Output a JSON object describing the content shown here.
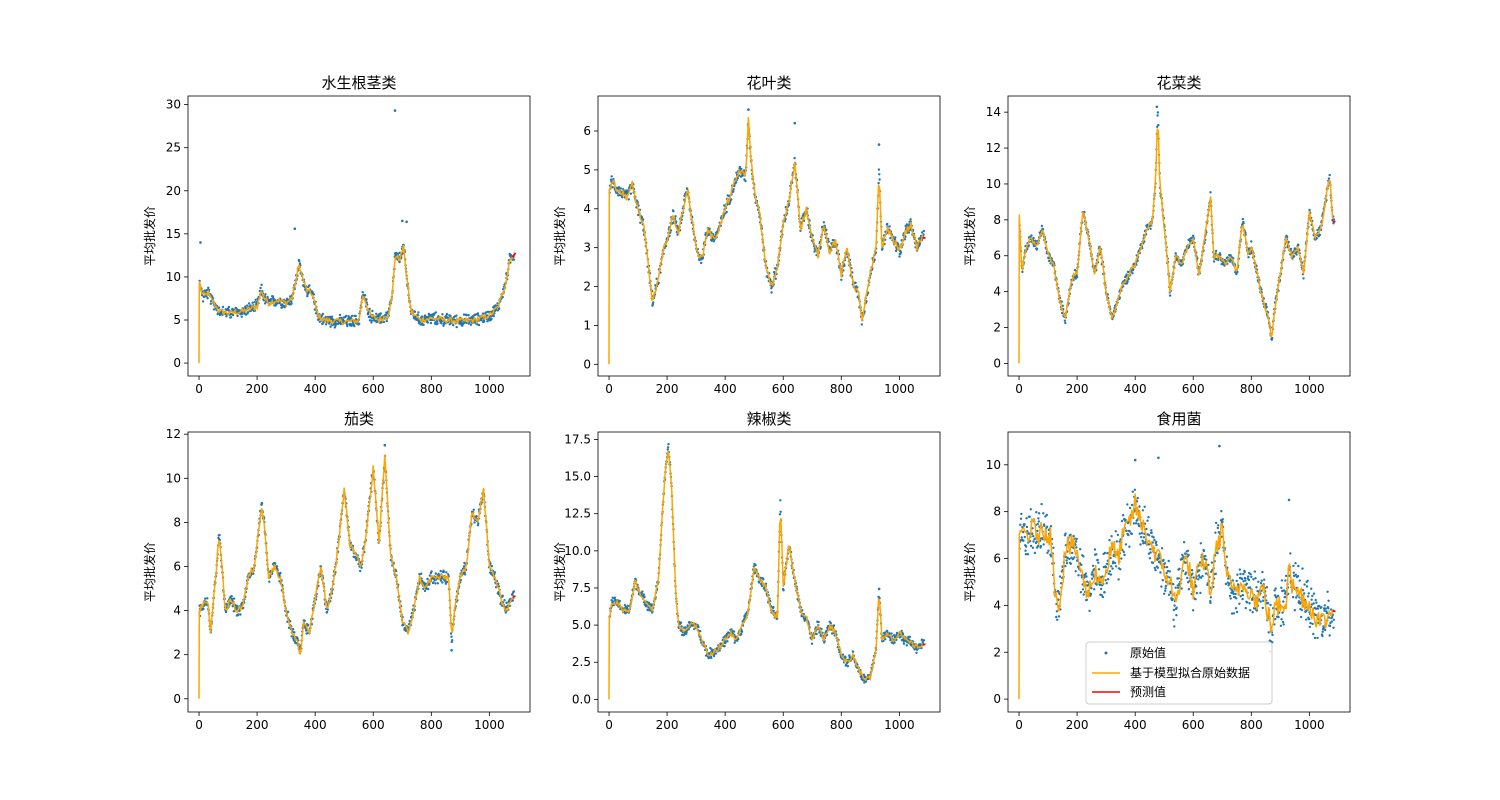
{
  "figure": {
    "ylabel": "平均批发价",
    "legend": {
      "placement": "lower-center (in 食用菌 panel)",
      "entries": [
        "原始值",
        "基于模型拟合原始数据",
        "预测值"
      ]
    },
    "colors": {
      "scatter": "#1f77b4",
      "fit": "#ffa500",
      "forecast": "#ff0000"
    }
  },
  "chart_data": [
    {
      "type": "line",
      "title": "水生根茎类",
      "ylabel": "平均批发价",
      "xlim": [
        -38,
        1140
      ],
      "ylim": [
        -1.5,
        31
      ],
      "xticks": [
        0,
        200,
        400,
        600,
        800,
        1000
      ],
      "yticks": [
        0,
        5,
        10,
        15,
        20,
        25,
        30
      ],
      "series": [
        {
          "name": "原始值",
          "kind": "scatter",
          "noise": 0.6,
          "outliers": [
            [
              5,
              14
            ],
            [
              330,
              15.6
            ],
            [
              675,
              29.3
            ],
            [
              700,
              16.5
            ],
            [
              715,
              16.4
            ]
          ]
        },
        {
          "name": "基于模型拟合原始数据",
          "kind": "line",
          "x": [
            0,
            1,
            10,
            20,
            30,
            40,
            50,
            70,
            100,
            150,
            200,
            215,
            225,
            240,
            270,
            300,
            320,
            330,
            345,
            355,
            370,
            390,
            410,
            430,
            460,
            500,
            550,
            565,
            575,
            590,
            620,
            650,
            665,
            675,
            690,
            705,
            715,
            730,
            760,
            800,
            850,
            900,
            950,
            1000,
            1030,
            1050,
            1060,
            1070,
            1080
          ],
          "y": [
            0,
            9.5,
            8.0,
            7.8,
            8.2,
            7.5,
            7.0,
            6.0,
            5.8,
            6.0,
            6.6,
            8.5,
            7.5,
            7.0,
            7.3,
            7.0,
            7.5,
            9.0,
            11.5,
            10.0,
            8.5,
            8.0,
            5.5,
            5.0,
            4.9,
            4.8,
            4.9,
            8.0,
            7.0,
            5.5,
            5.0,
            5.5,
            7.5,
            12.5,
            12.0,
            13.5,
            10.0,
            6.0,
            5.0,
            5.2,
            5.0,
            4.9,
            5.0,
            5.5,
            6.5,
            8.5,
            10.0,
            12.0,
            12.5
          ]
        },
        {
          "name": "预测值",
          "kind": "line",
          "x": [
            1080,
            1090
          ],
          "y": [
            12.3,
            12.8
          ]
        }
      ]
    },
    {
      "type": "line",
      "title": "花叶类",
      "ylabel": "平均批发价",
      "xlim": [
        -38,
        1140
      ],
      "ylim": [
        -0.3,
        6.9
      ],
      "xticks": [
        0,
        200,
        400,
        600,
        800,
        1000
      ],
      "yticks": [
        0,
        1,
        2,
        3,
        4,
        5,
        6
      ],
      "series": [
        {
          "name": "原始值",
          "kind": "scatter",
          "noise": 0.15,
          "outliers": [
            [
              640,
              6.2
            ],
            [
              930,
              5.65
            ],
            [
              480,
              6.55
            ]
          ]
        },
        {
          "name": "基于模型拟合原始数据",
          "kind": "line",
          "x": [
            0,
            1,
            10,
            30,
            60,
            80,
            100,
            120,
            150,
            170,
            190,
            210,
            220,
            240,
            260,
            270,
            300,
            320,
            340,
            360,
            380,
            400,
            430,
            450,
            470,
            480,
            490,
            500,
            520,
            540,
            560,
            580,
            600,
            620,
            640,
            660,
            680,
            700,
            720,
            740,
            760,
            780,
            800,
            820,
            840,
            860,
            870,
            880,
            900,
            920,
            930,
            940,
            960,
            980,
            1000,
            1020,
            1040,
            1060,
            1080
          ],
          "y": [
            0,
            4.5,
            4.7,
            4.5,
            4.3,
            4.6,
            4.0,
            3.5,
            1.6,
            2.2,
            3.0,
            3.5,
            3.8,
            3.4,
            4.2,
            4.5,
            3.0,
            2.7,
            3.5,
            3.2,
            3.5,
            4.0,
            4.6,
            5.0,
            4.8,
            6.3,
            5.2,
            4.5,
            3.8,
            2.5,
            2.0,
            2.5,
            3.6,
            4.2,
            5.2,
            3.5,
            4.0,
            3.2,
            2.8,
            3.6,
            2.9,
            3.2,
            2.3,
            3.0,
            2.1,
            1.8,
            1.1,
            1.5,
            2.3,
            3.0,
            5.0,
            3.0,
            3.5,
            3.2,
            2.9,
            3.4,
            3.6,
            3.0,
            3.3
          ]
        },
        {
          "name": "预测值",
          "kind": "line",
          "x": [
            1080,
            1090
          ],
          "y": [
            3.25,
            3.25
          ]
        }
      ]
    },
    {
      "type": "line",
      "title": "花菜类",
      "ylabel": "平均批发价",
      "xlim": [
        -38,
        1140
      ],
      "ylim": [
        -0.7,
        14.9
      ],
      "xticks": [
        0,
        200,
        400,
        600,
        800,
        1000
      ],
      "yticks": [
        0,
        2,
        4,
        6,
        8,
        10,
        12,
        14
      ],
      "series": [
        {
          "name": "原始值",
          "kind": "scatter",
          "noise": 0.25,
          "outliers": [
            [
              475,
              14.3
            ]
          ]
        },
        {
          "name": "基于模型拟合原始数据",
          "kind": "line",
          "x": [
            0,
            1,
            10,
            20,
            40,
            60,
            80,
            100,
            120,
            140,
            160,
            180,
            190,
            200,
            220,
            240,
            260,
            280,
            300,
            320,
            340,
            360,
            380,
            400,
            420,
            440,
            460,
            470,
            478,
            485,
            495,
            510,
            520,
            540,
            560,
            580,
            600,
            620,
            640,
            660,
            670,
            690,
            710,
            730,
            750,
            770,
            790,
            800,
            820,
            840,
            860,
            870,
            880,
            900,
            920,
            940,
            960,
            980,
            1000,
            1020,
            1040,
            1060,
            1070,
            1080
          ],
          "y": [
            0,
            8.3,
            5.0,
            6.2,
            7.0,
            6.5,
            7.5,
            6.0,
            5.5,
            3.5,
            2.5,
            4.5,
            5.0,
            5.0,
            8.5,
            7.0,
            5.0,
            6.5,
            4.0,
            2.5,
            3.5,
            4.5,
            5.0,
            5.5,
            6.5,
            7.5,
            8.0,
            10.0,
            14.2,
            10.0,
            8.5,
            6.0,
            4.0,
            6.0,
            5.5,
            6.5,
            7.0,
            5.0,
            7.0,
            9.4,
            6.0,
            6.0,
            5.5,
            6.0,
            5.0,
            8.0,
            6.0,
            6.5,
            5.0,
            3.5,
            2.5,
            1.3,
            3.0,
            5.0,
            7.0,
            6.0,
            6.5,
            5.0,
            8.5,
            7.0,
            7.5,
            9.5,
            10.5,
            8.0
          ]
        },
        {
          "name": "预测值",
          "kind": "line",
          "x": [
            1080,
            1090
          ],
          "y": [
            7.9,
            7.9
          ]
        }
      ]
    },
    {
      "type": "line",
      "title": "茄类",
      "ylabel": "平均批发价",
      "xlim": [
        -38,
        1140
      ],
      "ylim": [
        -0.6,
        12.1
      ],
      "xticks": [
        0,
        200,
        400,
        600,
        800,
        1000
      ],
      "yticks": [
        0,
        2,
        4,
        6,
        8,
        10,
        12
      ],
      "series": [
        {
          "name": "原始值",
          "kind": "scatter",
          "noise": 0.25,
          "outliers": [
            [
              640,
              11.5
            ],
            [
              870,
              2.2
            ]
          ]
        },
        {
          "name": "基于模型拟合原始数据",
          "kind": "line",
          "x": [
            0,
            1,
            10,
            30,
            40,
            60,
            70,
            90,
            110,
            130,
            150,
            170,
            190,
            200,
            215,
            225,
            240,
            260,
            280,
            300,
            320,
            340,
            350,
            360,
            380,
            400,
            420,
            440,
            460,
            480,
            500,
            520,
            540,
            560,
            580,
            600,
            620,
            640,
            660,
            680,
            700,
            720,
            740,
            760,
            780,
            800,
            830,
            860,
            870,
            880,
            900,
            920,
            940,
            960,
            980,
            1000,
            1020,
            1040,
            1060,
            1080
          ],
          "y": [
            0,
            4.0,
            4.2,
            4.5,
            3.0,
            6.0,
            7.5,
            4.0,
            4.5,
            4.0,
            4.2,
            5.5,
            6.0,
            7.0,
            8.8,
            8.0,
            5.5,
            6.0,
            5.5,
            4.0,
            3.0,
            2.5,
            2.0,
            3.5,
            3.0,
            4.5,
            6.0,
            4.0,
            5.0,
            7.0,
            9.5,
            7.0,
            6.5,
            6.0,
            8.0,
            10.5,
            7.0,
            11.0,
            6.5,
            5.5,
            3.5,
            3.0,
            4.0,
            5.5,
            5.0,
            5.5,
            5.5,
            5.5,
            2.7,
            4.0,
            5.5,
            6.0,
            8.5,
            8.0,
            9.5,
            6.0,
            5.5,
            4.5,
            4.0,
            4.7
          ]
        },
        {
          "name": "预测值",
          "kind": "line",
          "x": [
            1080,
            1090
          ],
          "y": [
            4.65,
            4.65
          ]
        }
      ]
    },
    {
      "type": "line",
      "title": "辣椒类",
      "ylabel": "平均批发价",
      "xlim": [
        -38,
        1140
      ],
      "ylim": [
        -0.85,
        18.0
      ],
      "xticks": [
        0,
        200,
        400,
        600,
        800,
        1000
      ],
      "yticks": [
        0.0,
        2.5,
        5.0,
        7.5,
        10.0,
        12.5,
        15.0,
        17.5
      ],
      "series": [
        {
          "name": "原始值",
          "kind": "scatter",
          "noise": 0.3,
          "outliers": []
        },
        {
          "name": "基于模型拟合原始数据",
          "kind": "line",
          "x": [
            0,
            1,
            10,
            30,
            50,
            70,
            90,
            110,
            130,
            150,
            170,
            185,
            195,
            205,
            215,
            230,
            240,
            260,
            280,
            300,
            320,
            340,
            360,
            380,
            400,
            420,
            440,
            460,
            480,
            500,
            520,
            540,
            560,
            580,
            590,
            600,
            620,
            640,
            660,
            680,
            700,
            720,
            740,
            760,
            780,
            800,
            820,
            840,
            860,
            880,
            900,
            920,
            930,
            940,
            960,
            980,
            1000,
            1020,
            1040,
            1060,
            1080
          ],
          "y": [
            0,
            5.5,
            6.5,
            6.5,
            6.0,
            6.0,
            8.0,
            7.0,
            6.5,
            6.0,
            8.0,
            13.0,
            15.5,
            17.0,
            14.5,
            7.0,
            5.0,
            4.5,
            5.0,
            5.0,
            4.0,
            3.0,
            3.2,
            3.5,
            4.0,
            4.5,
            4.0,
            5.0,
            6.0,
            9.0,
            8.0,
            7.5,
            6.0,
            5.5,
            13.3,
            7.5,
            10.5,
            8.0,
            6.0,
            5.5,
            4.0,
            5.0,
            4.0,
            5.0,
            4.5,
            3.0,
            2.5,
            3.0,
            2.0,
            1.3,
            1.5,
            3.5,
            7.5,
            4.0,
            4.5,
            4.0,
            4.5,
            4.0,
            3.8,
            3.5,
            3.7
          ]
        },
        {
          "name": "预测值",
          "kind": "line",
          "x": [
            1080,
            1090
          ],
          "y": [
            3.7,
            3.7
          ]
        }
      ]
    },
    {
      "type": "line",
      "title": "食用菌",
      "ylabel": "平均批发价",
      "xlim": [
        -38,
        1140
      ],
      "ylim": [
        -0.55,
        11.4
      ],
      "xticks": [
        0,
        200,
        400,
        600,
        800,
        1000
      ],
      "yticks": [
        0,
        2,
        4,
        6,
        8,
        10
      ],
      "series": [
        {
          "name": "原始值",
          "kind": "scatter",
          "noise": 0.9,
          "outliers": [
            [
              690,
              10.8
            ],
            [
              480,
              10.3
            ],
            [
              400,
              10.2
            ],
            [
              930,
              8.5
            ]
          ]
        },
        {
          "name": "基于模型拟合原始数据",
          "kind": "line",
          "x": [
            0,
            1,
            10,
            30,
            50,
            70,
            90,
            110,
            120,
            140,
            160,
            180,
            200,
            220,
            240,
            260,
            280,
            300,
            320,
            340,
            360,
            380,
            400,
            420,
            440,
            460,
            480,
            500,
            520,
            540,
            560,
            580,
            600,
            620,
            640,
            660,
            680,
            700,
            720,
            740,
            760,
            780,
            800,
            820,
            840,
            860,
            870,
            880,
            900,
            920,
            930,
            940,
            960,
            980,
            1000,
            1020,
            1040,
            1060,
            1080
          ],
          "y": [
            0,
            7.0,
            7.2,
            7.0,
            7.3,
            7.0,
            7.2,
            7.0,
            5.0,
            4.0,
            6.5,
            6.5,
            6.3,
            5.0,
            4.5,
            5.5,
            5.0,
            5.5,
            6.5,
            6.0,
            7.0,
            7.5,
            8.3,
            7.5,
            7.0,
            6.5,
            6.0,
            5.5,
            5.0,
            4.0,
            5.5,
            6.0,
            4.5,
            5.5,
            6.0,
            4.5,
            6.5,
            7.2,
            5.0,
            4.5,
            4.8,
            5.0,
            4.5,
            4.2,
            4.8,
            3.5,
            3.0,
            3.8,
            4.0,
            4.2,
            6.3,
            4.8,
            4.6,
            4.3,
            4.0,
            3.6,
            3.3,
            3.4,
            3.8
          ]
        },
        {
          "name": "预测值",
          "kind": "line",
          "x": [
            1080,
            1090
          ],
          "y": [
            3.75,
            3.75
          ]
        }
      ]
    }
  ]
}
